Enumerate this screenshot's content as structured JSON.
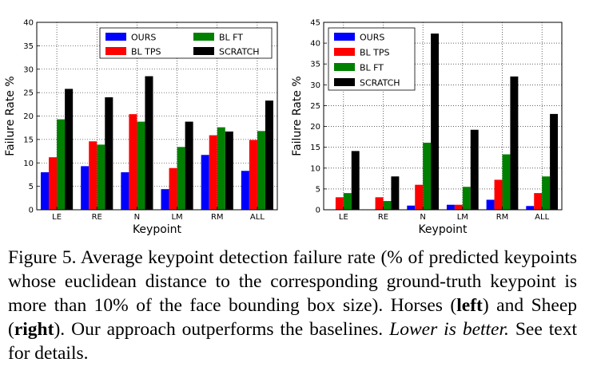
{
  "chart_data": [
    {
      "type": "bar",
      "categories": [
        "LE",
        "RE",
        "N",
        "LM",
        "RM",
        "ALL"
      ],
      "series": [
        {
          "name": "OURS",
          "values": [
            8.0,
            9.3,
            8.0,
            4.4,
            11.7,
            8.3
          ]
        },
        {
          "name": "BL TPS",
          "values": [
            11.2,
            14.6,
            20.4,
            8.9,
            15.9,
            14.9
          ]
        },
        {
          "name": "BL FT",
          "values": [
            19.3,
            13.9,
            18.8,
            13.4,
            17.6,
            16.8
          ]
        },
        {
          "name": "SCRATCH",
          "values": [
            25.8,
            24.0,
            28.5,
            18.8,
            16.7,
            23.3
          ]
        }
      ],
      "colors": [
        "#0000ff",
        "#ff0000",
        "#008000",
        "#000000"
      ],
      "xlabel": "Keypoint",
      "ylabel": "Failure Rate %",
      "ylim": [
        0,
        40
      ],
      "yticks": [
        "0",
        "5",
        "10",
        "15",
        "20",
        "25",
        "30",
        "35",
        "40"
      ],
      "grid": true,
      "legend": "top, two columns"
    },
    {
      "type": "bar",
      "categories": [
        "LE",
        "RE",
        "N",
        "LM",
        "RM",
        "ALL"
      ],
      "series": [
        {
          "name": "OURS",
          "values": [
            0.0,
            0.0,
            1.0,
            1.2,
            2.4,
            0.9
          ]
        },
        {
          "name": "BL TPS",
          "values": [
            3.0,
            3.0,
            6.0,
            1.2,
            7.2,
            4.0
          ]
        },
        {
          "name": "BL FT",
          "values": [
            4.0,
            2.1,
            16.1,
            5.5,
            13.3,
            8.0
          ]
        },
        {
          "name": "SCRATCH",
          "values": [
            14.1,
            8.0,
            42.3,
            19.2,
            32.0,
            23.0
          ]
        }
      ],
      "colors": [
        "#0000ff",
        "#ff0000",
        "#008000",
        "#000000"
      ],
      "xlabel": "Keypoint",
      "ylabel": "Failure Rate %",
      "ylim": [
        0,
        45
      ],
      "yticks": [
        "0",
        "5",
        "10",
        "15",
        "20",
        "25",
        "30",
        "35",
        "40",
        "45"
      ],
      "grid": true,
      "legend": "top-left"
    }
  ],
  "caption": {
    "label": "Figure 5.",
    "part1": " Average keypoint detection failure rate (% of predicted keypoints whose euclidean distance to the corresponding ground-truth keypoint is more than 10% of the face bounding box size). Horses (",
    "bold1": "left",
    "part2": ") and Sheep (",
    "bold2": "right",
    "part3": ").  Our approach outperforms the baselines. ",
    "italic": "Lower is better.",
    "part4": " See text for details."
  }
}
